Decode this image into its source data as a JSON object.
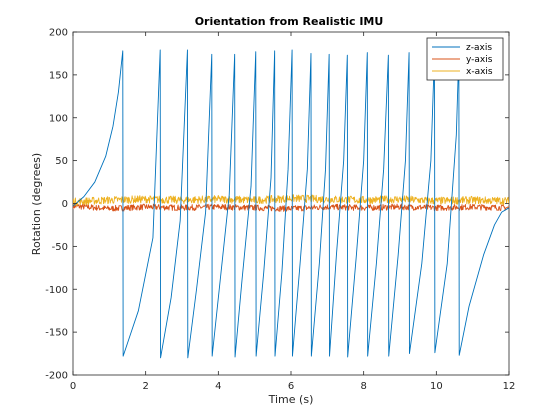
{
  "chart_data": {
    "type": "line",
    "title": "Orientation from Realistic IMU",
    "xlabel": "Time (s)",
    "ylabel": "Rotation (degrees)",
    "xlim": [
      0,
      12
    ],
    "ylim": [
      -200,
      200
    ],
    "xticks": [
      0,
      2,
      4,
      6,
      8,
      10,
      12
    ],
    "yticks": [
      -200,
      -150,
      -100,
      -50,
      0,
      50,
      100,
      150,
      200
    ],
    "grid": false,
    "legend_position": "top-right",
    "series": [
      {
        "name": "z-axis",
        "color": "#0072bd",
        "points": [
          [
            0.0,
            -3
          ],
          [
            0.3,
            8
          ],
          [
            0.6,
            25
          ],
          [
            0.9,
            55
          ],
          [
            1.1,
            90
          ],
          [
            1.25,
            130
          ],
          [
            1.37,
            178
          ],
          [
            1.38,
            -178
          ],
          [
            1.8,
            -125
          ],
          [
            2.2,
            -40
          ],
          [
            2.4,
            179
          ],
          [
            2.41,
            -180
          ],
          [
            2.7,
            -110
          ],
          [
            2.95,
            -20
          ],
          [
            3.15,
            179
          ],
          [
            3.16,
            -180
          ],
          [
            3.4,
            -100
          ],
          [
            3.65,
            -10
          ],
          [
            3.82,
            174
          ],
          [
            3.83,
            -178
          ],
          [
            4.05,
            -90
          ],
          [
            4.3,
            10
          ],
          [
            4.45,
            174
          ],
          [
            4.46,
            -179
          ],
          [
            4.65,
            -90
          ],
          [
            4.9,
            20
          ],
          [
            5.03,
            177
          ],
          [
            5.04,
            -178
          ],
          [
            5.25,
            -80
          ],
          [
            5.45,
            30
          ],
          [
            5.55,
            178
          ],
          [
            5.56,
            -178
          ],
          [
            5.75,
            -80
          ],
          [
            5.92,
            40
          ],
          [
            6.03,
            179
          ],
          [
            6.04,
            -178
          ],
          [
            6.25,
            -70
          ],
          [
            6.45,
            40
          ],
          [
            6.55,
            175
          ],
          [
            6.56,
            -178
          ],
          [
            6.78,
            -70
          ],
          [
            6.95,
            40
          ],
          [
            7.05,
            174
          ],
          [
            7.06,
            -178
          ],
          [
            7.25,
            -60
          ],
          [
            7.45,
            50
          ],
          [
            7.55,
            173
          ],
          [
            7.56,
            -179
          ],
          [
            7.8,
            -60
          ],
          [
            8.0,
            50
          ],
          [
            8.1,
            176
          ],
          [
            8.11,
            -178
          ],
          [
            8.35,
            -70
          ],
          [
            8.55,
            40
          ],
          [
            8.68,
            173
          ],
          [
            8.69,
            -178
          ],
          [
            8.95,
            -60
          ],
          [
            9.15,
            50
          ],
          [
            9.25,
            176
          ],
          [
            9.26,
            -175
          ],
          [
            9.6,
            -70
          ],
          [
            9.85,
            50
          ],
          [
            9.95,
            176
          ],
          [
            9.96,
            -174
          ],
          [
            10.3,
            -70
          ],
          [
            10.55,
            80
          ],
          [
            10.62,
            176
          ],
          [
            10.63,
            -177
          ],
          [
            10.9,
            -120
          ],
          [
            11.3,
            -60
          ],
          [
            11.6,
            -25
          ],
          [
            11.8,
            -10
          ],
          [
            12.0,
            -5
          ]
        ]
      },
      {
        "name": "y-axis",
        "color": "#d95319",
        "points": [
          [
            0,
            -3
          ],
          [
            1,
            -6
          ],
          [
            2,
            -4
          ],
          [
            3,
            -5
          ],
          [
            4,
            -4
          ],
          [
            5,
            -5
          ],
          [
            6,
            -6
          ],
          [
            7,
            -4
          ],
          [
            8,
            -5
          ],
          [
            9,
            -4
          ],
          [
            10,
            -5
          ],
          [
            11,
            -4
          ],
          [
            12,
            -5
          ]
        ]
      },
      {
        "name": "x-axis",
        "color": "#edb120",
        "points": [
          [
            0,
            2
          ],
          [
            1,
            4
          ],
          [
            2,
            5
          ],
          [
            3,
            4
          ],
          [
            4,
            5
          ],
          [
            5,
            4
          ],
          [
            6,
            6
          ],
          [
            7,
            5
          ],
          [
            8,
            4
          ],
          [
            9,
            5
          ],
          [
            10,
            3
          ],
          [
            11,
            4
          ],
          [
            12,
            3
          ]
        ]
      }
    ]
  }
}
